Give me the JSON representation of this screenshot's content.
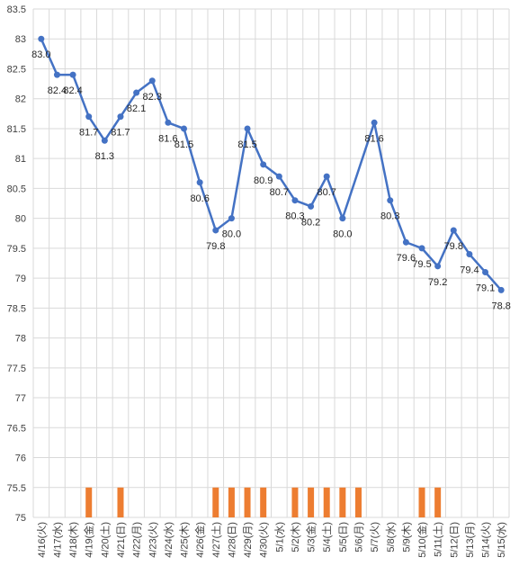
{
  "chart_data": {
    "type": "line",
    "title": "",
    "xlabel": "",
    "ylabel": "",
    "ylim": [
      75,
      83.5
    ],
    "ytick_step": 0.5,
    "ytick_labels": [
      "75",
      "75.5",
      "76",
      "76.5",
      "77",
      "77.5",
      "78",
      "78.5",
      "79",
      "79.5",
      "80",
      "80.5",
      "81",
      "81.5",
      "82",
      "82.5",
      "83",
      "83.5"
    ],
    "grid": true,
    "legend": "none",
    "categories": [
      "4/16(火)",
      "4/17(水)",
      "4/18(木)",
      "4/19(金)",
      "4/20(土)",
      "4/21(日)",
      "4/22(月)",
      "4/23(火)",
      "4/24(水)",
      "4/25(木)",
      "4/26(金)",
      "4/27(土)",
      "4/28(日)",
      "4/29(月)",
      "4/30(火)",
      "5/1(水)",
      "5/2(木)",
      "5/3(金)",
      "5/4(土)",
      "5/5(日)",
      "5/6(月)",
      "5/7(火)",
      "5/8(水)",
      "5/9(木)",
      "5/10(金)",
      "5/11(土)",
      "5/12(日)",
      "5/13(月)",
      "5/14(火)",
      "5/15(水)"
    ],
    "series": [
      {
        "color": "#4472c4",
        "values": [
          83.0,
          82.4,
          82.4,
          81.7,
          81.3,
          81.7,
          82.1,
          82.3,
          81.6,
          81.5,
          80.6,
          79.8,
          80.0,
          81.5,
          80.9,
          80.7,
          80.3,
          80.2,
          80.7,
          80.0,
          null,
          81.6,
          80.3,
          79.6,
          79.5,
          79.2,
          79.8,
          79.4,
          79.1,
          78.8
        ],
        "labels": [
          "83.0",
          "82.4",
          "82.4",
          "81.7",
          "81.3",
          "81.7",
          "82.1",
          "82.3",
          "81.6",
          "81.5",
          "80.6",
          "79.8",
          "80.0",
          "81.5",
          "80.9",
          "80.7",
          "80.3",
          "80.2",
          "80.7",
          "80.0",
          "",
          "81.6",
          "80.3",
          "79.6",
          "79.5",
          "79.2",
          "79.8",
          "79.4",
          "79.1",
          "78.8"
        ]
      },
      {
        "type": "bar",
        "color": "#ed7d31",
        "values": [
          null,
          null,
          null,
          75.5,
          null,
          75.5,
          null,
          null,
          null,
          null,
          null,
          75.5,
          75.5,
          75.5,
          75.5,
          null,
          75.5,
          75.5,
          75.5,
          75.5,
          75.5,
          null,
          null,
          null,
          75.5,
          75.5,
          null,
          null,
          null,
          null
        ]
      }
    ]
  }
}
